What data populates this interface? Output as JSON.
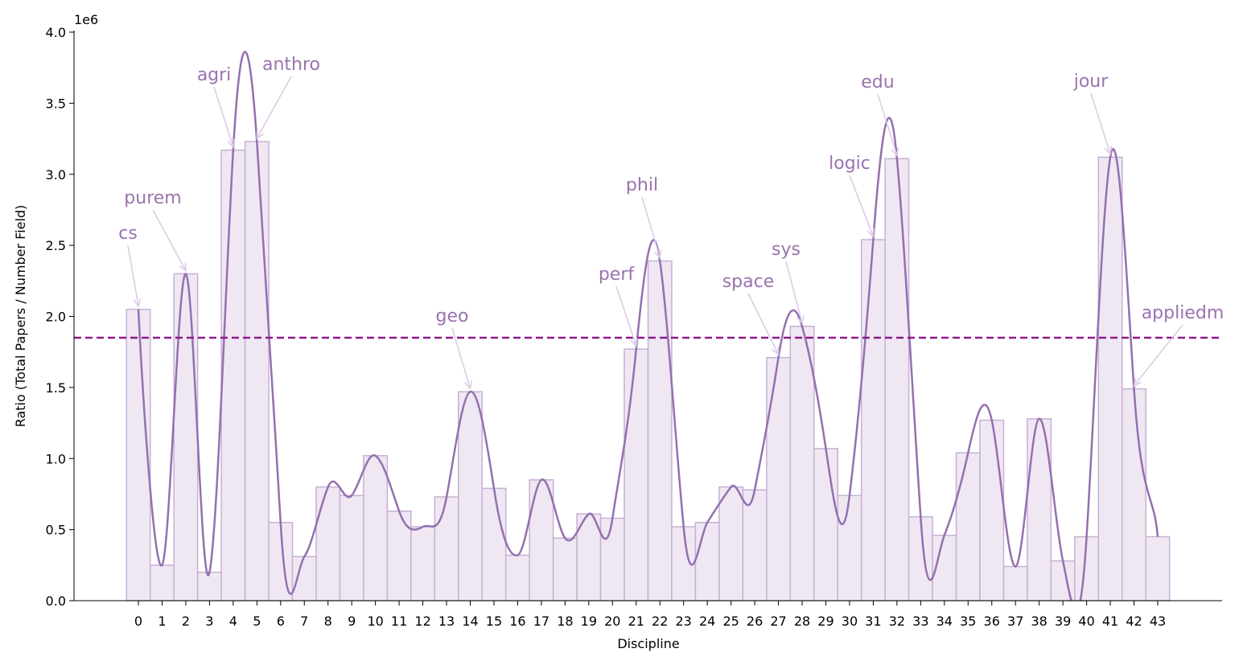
{
  "chart_data": {
    "type": "bar",
    "xlabel": "Discipline",
    "ylabel": "Ratio (Total Papers / Number Field)",
    "y_offset_label": "1e6",
    "categories": [
      "0",
      "1",
      "2",
      "3",
      "4",
      "5",
      "6",
      "7",
      "8",
      "9",
      "10",
      "11",
      "12",
      "13",
      "14",
      "15",
      "16",
      "17",
      "18",
      "19",
      "20",
      "21",
      "22",
      "23",
      "24",
      "25",
      "26",
      "27",
      "28",
      "29",
      "30",
      "31",
      "32",
      "33",
      "34",
      "35",
      "36",
      "37",
      "38",
      "39",
      "40",
      "41",
      "42",
      "43"
    ],
    "values": [
      2.05,
      0.25,
      2.3,
      0.2,
      3.17,
      3.23,
      0.55,
      0.31,
      0.8,
      0.74,
      1.02,
      0.63,
      0.52,
      0.73,
      1.47,
      0.79,
      0.32,
      0.85,
      0.44,
      0.61,
      0.58,
      1.77,
      2.39,
      0.52,
      0.55,
      0.8,
      0.78,
      1.71,
      1.93,
      1.07,
      0.74,
      2.54,
      3.11,
      0.59,
      0.46,
      1.04,
      1.27,
      0.24,
      1.28,
      0.28,
      0.45,
      3.12,
      1.49,
      0.45
    ],
    "color": "#efe8f3",
    "edge_color": "#c7b0d4",
    "curve_color": "#9470b0",
    "reference_line": 1.85,
    "reference_color": "#8b1a8b",
    "annotation_color": "#9a72b0",
    "annotations": [
      {
        "text": "cs",
        "category": "0"
      },
      {
        "text": "purem",
        "category": "2"
      },
      {
        "text": "agri",
        "category": "4"
      },
      {
        "text": "anthro",
        "category": "5"
      },
      {
        "text": "geo",
        "category": "14"
      },
      {
        "text": "perf",
        "category": "21"
      },
      {
        "text": "phil",
        "category": "22"
      },
      {
        "text": "space",
        "category": "27"
      },
      {
        "text": "sys",
        "category": "28"
      },
      {
        "text": "logic",
        "category": "31"
      },
      {
        "text": "edu",
        "category": "32"
      },
      {
        "text": "jour",
        "category": "41"
      },
      {
        "text": "appliedm",
        "category": "42"
      }
    ],
    "ylim": [
      0,
      4
    ],
    "yticks": [
      {
        "value": 0,
        "label": "0.0"
      },
      0.5,
      {
        "value": 1,
        "label": "1.0"
      },
      1.5,
      {
        "value": 2,
        "label": "2.0"
      },
      2.5,
      {
        "value": 3,
        "label": "3.0"
      },
      3.5,
      {
        "value": 4,
        "label": "4.0"
      }
    ],
    "grid": false
  }
}
